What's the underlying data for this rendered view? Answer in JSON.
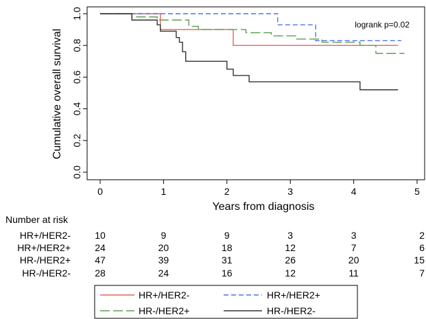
{
  "chart_data": {
    "type": "line",
    "subtype": "kaplan-meier",
    "xlabel": "Years from diagnosis",
    "ylabel": "Cumulative overall survival",
    "xlim": [
      0,
      5
    ],
    "ylim": [
      0,
      1
    ],
    "x_ticks": [
      0,
      1,
      2,
      3,
      4,
      5
    ],
    "y_ticks": [
      0.0,
      0.2,
      0.4,
      0.6,
      0.8,
      1.0
    ],
    "y_tick_labels": [
      "0.0",
      "0.2",
      "0.4",
      "0.6",
      "0.8",
      "1.0"
    ],
    "grid": false,
    "annotation": "logrank p=0.02",
    "legend_position": "bottom-center",
    "series": [
      {
        "name": "HR+/HER2-",
        "color": "#e8605c",
        "dash": "solid",
        "steps": [
          [
            0,
            1.0
          ],
          [
            0.95,
            0.9
          ],
          [
            2.1,
            0.8
          ],
          [
            4.7,
            0.8
          ]
        ]
      },
      {
        "name": "HR+/HER2+",
        "color": "#4a73e8",
        "dash": "dashed",
        "steps": [
          [
            0,
            1.0
          ],
          [
            2.8,
            0.93
          ],
          [
            3.4,
            0.83
          ],
          [
            4.75,
            0.83
          ]
        ]
      },
      {
        "name": "HR-/HER2+",
        "color": "#5a9e4e",
        "dash": "longdash",
        "steps": [
          [
            0,
            1.0
          ],
          [
            0.5,
            0.98
          ],
          [
            0.9,
            0.96
          ],
          [
            1.4,
            0.92
          ],
          [
            1.55,
            0.9
          ],
          [
            2.3,
            0.88
          ],
          [
            2.7,
            0.86
          ],
          [
            3.1,
            0.84
          ],
          [
            3.5,
            0.82
          ],
          [
            4.1,
            0.8
          ],
          [
            4.35,
            0.75
          ],
          [
            4.8,
            0.75
          ]
        ]
      },
      {
        "name": "HR-/HER2-",
        "color": "#333333",
        "dash": "solid",
        "steps": [
          [
            0,
            1.0
          ],
          [
            0.5,
            0.96
          ],
          [
            0.9,
            0.93
          ],
          [
            0.95,
            0.89
          ],
          [
            1.2,
            0.85
          ],
          [
            1.25,
            0.82
          ],
          [
            1.3,
            0.76
          ],
          [
            1.35,
            0.7
          ],
          [
            2.0,
            0.65
          ],
          [
            2.1,
            0.61
          ],
          [
            2.35,
            0.57
          ],
          [
            4.1,
            0.52
          ],
          [
            4.7,
            0.52
          ]
        ]
      }
    ],
    "risk_table": {
      "title": "Number at risk",
      "times": [
        0,
        1,
        2,
        3,
        4,
        5
      ],
      "rows": [
        {
          "label": "HR+/HER2-",
          "values": [
            "10",
            "9",
            "9",
            "3",
            "3",
            "2"
          ]
        },
        {
          "label": "HR+/HER2+",
          "values": [
            "24",
            "20",
            "18",
            "12",
            "7",
            "6"
          ]
        },
        {
          "label": "HR-/HER2+",
          "values": [
            "47",
            "39",
            "31",
            "26",
            "20",
            "15"
          ]
        },
        {
          "label": "HR-/HER2-",
          "values": [
            "28",
            "24",
            "16",
            "12",
            "11",
            "7"
          ]
        }
      ]
    }
  }
}
